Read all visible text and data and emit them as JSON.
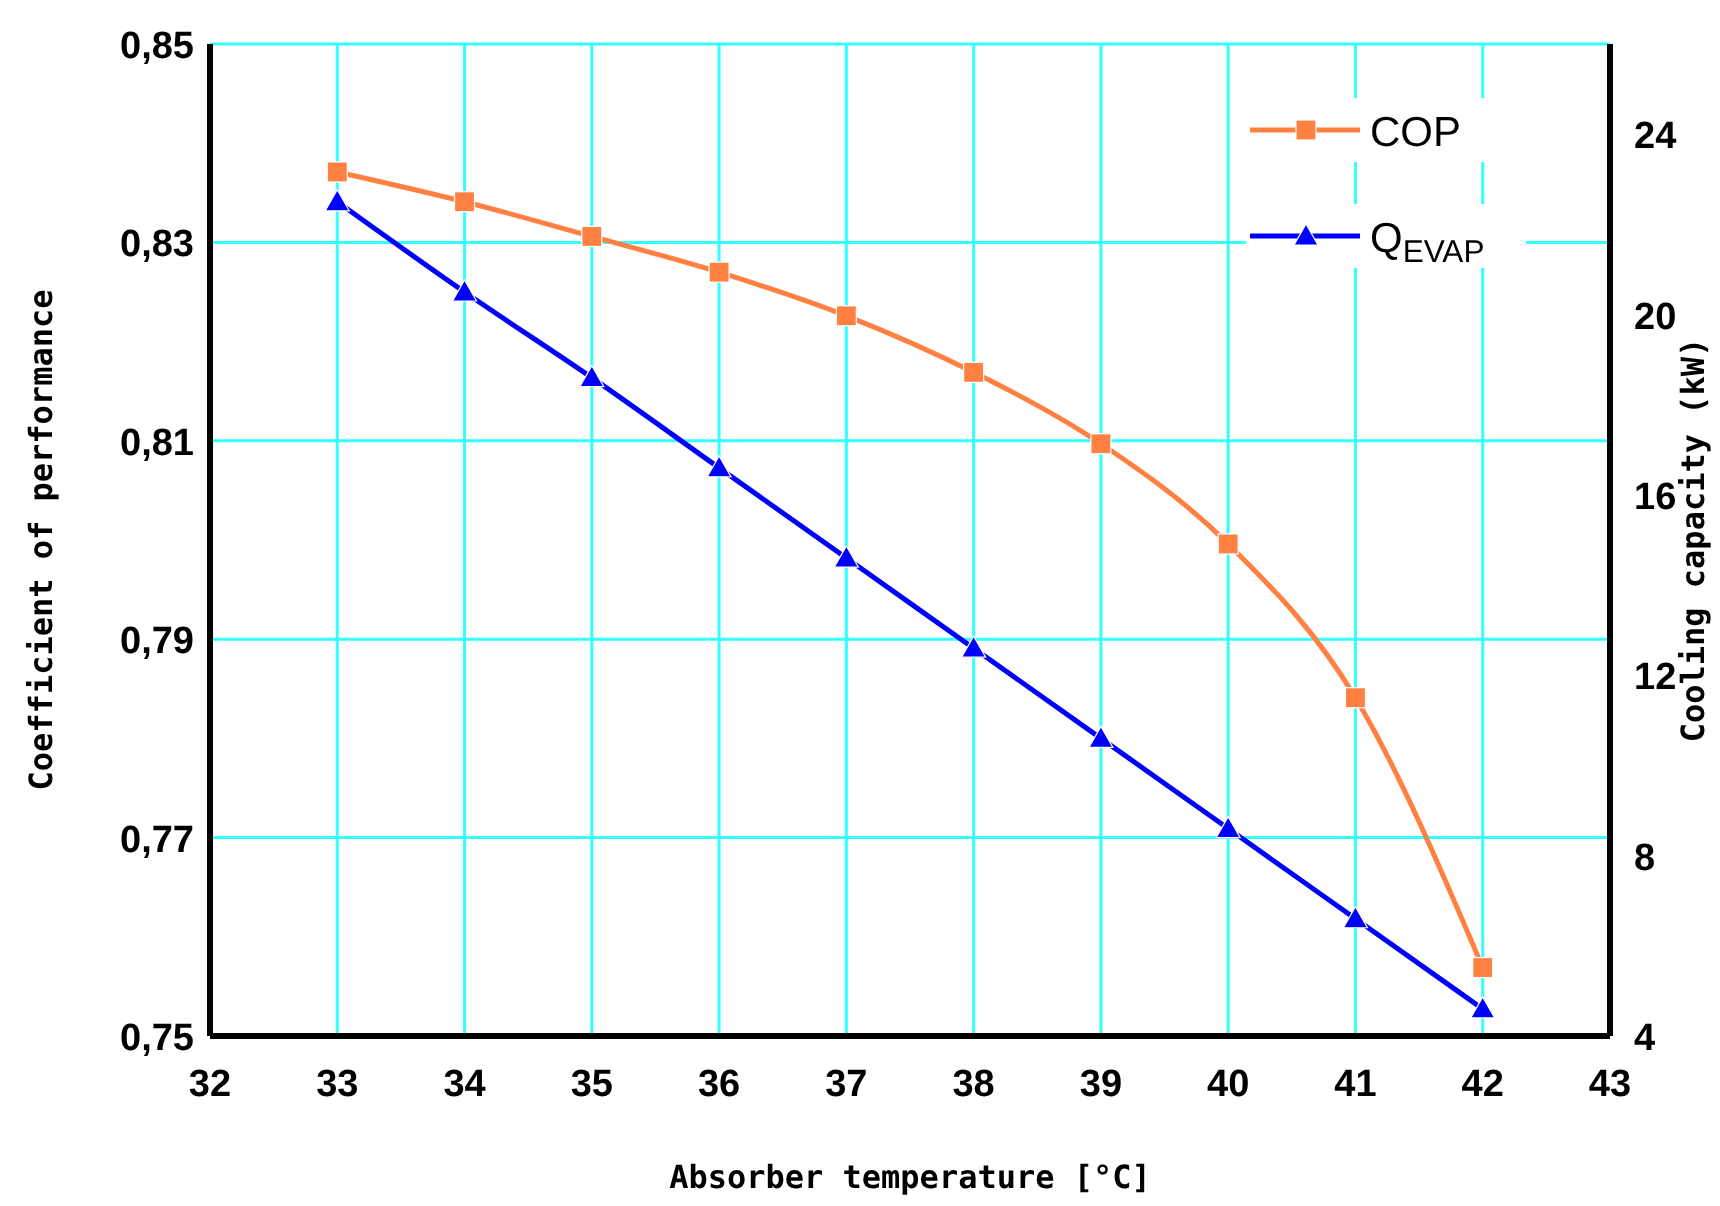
{
  "chart_data": {
    "type": "line",
    "xlabel": "Absorber temperature [°C]",
    "ylabel": "Coefficient of performance",
    "y2label": "Cooling capacity (kW)",
    "x": [
      33,
      34,
      35,
      36,
      37,
      38,
      39,
      40,
      41,
      42
    ],
    "xlim": [
      32,
      43
    ],
    "xticks": [
      32,
      33,
      34,
      35,
      36,
      37,
      38,
      39,
      40,
      41,
      42,
      43
    ],
    "ylim": [
      0.75,
      0.85
    ],
    "yticks": [
      {
        "value": 0.75,
        "label": "0,75"
      },
      {
        "value": 0.77,
        "label": "0,77"
      },
      {
        "value": 0.79,
        "label": "0,79"
      },
      {
        "value": 0.81,
        "label": "0,81"
      },
      {
        "value": 0.83,
        "label": "0,83"
      },
      {
        "value": 0.85,
        "label": "0,85"
      }
    ],
    "y2lim": [
      4,
      26
    ],
    "y2ticks": [
      4,
      8,
      12,
      16,
      20,
      24
    ],
    "grid": true,
    "legend": "top right",
    "line_style": "solid",
    "series": [
      {
        "name": "COP",
        "color": "#ff8040",
        "marker": "square",
        "values": [
          0.8371,
          0.8341,
          0.8306,
          0.827,
          0.8226,
          0.8169,
          0.8097,
          0.7996,
          0.7841,
          0.7569
        ]
      },
      {
        "name": "Q$_{EVAP}$",
        "color": "#0000ff",
        "marker": "triangle",
        "axis": "y2",
        "values": [
          22.5,
          20.5,
          18.6,
          16.6,
          14.6,
          12.6,
          10.6,
          8.6,
          6.6,
          4.6
        ]
      }
    ]
  }
}
